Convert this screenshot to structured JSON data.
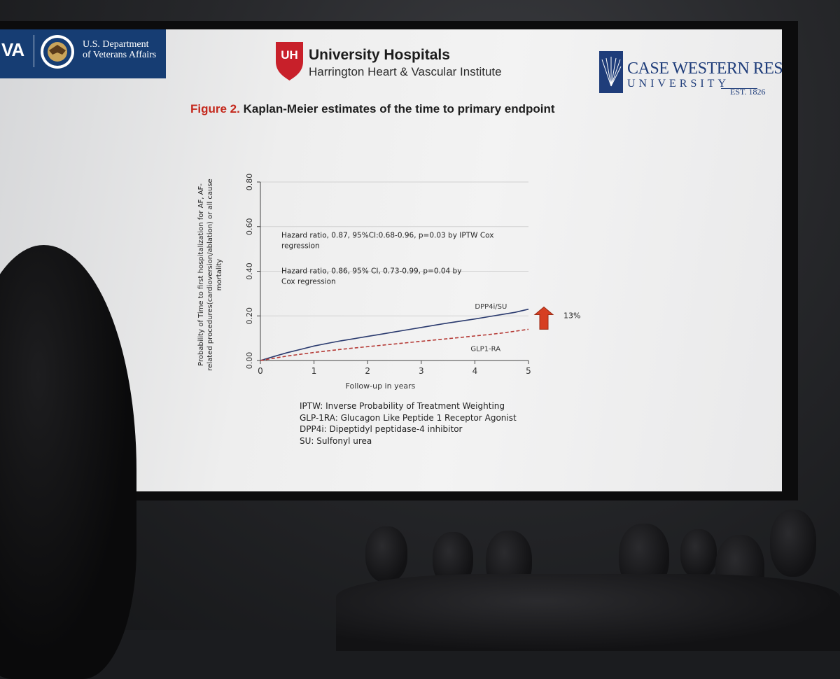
{
  "header": {
    "va_letters": "VA",
    "va_department": "U.S. Department\nof Veterans Affairs",
    "uh_mark": "UH",
    "uh_name": "University Hospitals",
    "uh_institute": "Harrington Heart & Vascular Institute",
    "cwru_name": "CASE WESTERN RESERVE",
    "cwru_university": "UNIVERSITY",
    "cwru_est": "EST. 1826"
  },
  "figure": {
    "label": "Figure 2.",
    "title": "Kaplan-Meier estimates of the time to primary endpoint"
  },
  "chart_data": {
    "type": "line",
    "xlabel": "Follow-up in years",
    "ylabel_lines": [
      "Probability of  Time to first hospitalization for AF, AF-",
      "related procedures(cardioversion/ablation) or all cause",
      "mortality"
    ],
    "xlim": [
      0,
      5
    ],
    "ylim": [
      0,
      0.8
    ],
    "x_ticks": [
      "0",
      "1",
      "2",
      "3",
      "4",
      "5"
    ],
    "y_ticks": [
      "0.00",
      "0.20",
      "0.40",
      "0.60",
      "0.80"
    ],
    "grid": "horizontal",
    "series": [
      {
        "name": "DPP4i/SU",
        "color": "#2a3a6e",
        "style": "solid",
        "x": [
          0,
          0.25,
          0.5,
          0.75,
          1,
          1.25,
          1.5,
          1.75,
          2,
          2.25,
          2.5,
          2.75,
          3,
          3.25,
          3.5,
          3.75,
          4,
          4.25,
          4.5,
          4.75,
          5
        ],
        "y": [
          0,
          0.018,
          0.035,
          0.05,
          0.065,
          0.077,
          0.088,
          0.098,
          0.108,
          0.118,
          0.128,
          0.138,
          0.148,
          0.158,
          0.168,
          0.177,
          0.186,
          0.196,
          0.206,
          0.216,
          0.23
        ]
      },
      {
        "name": "GLP1-RA",
        "color": "#b53a36",
        "style": "dashed",
        "x": [
          0,
          0.25,
          0.5,
          0.75,
          1,
          1.25,
          1.5,
          1.75,
          2,
          2.25,
          2.5,
          2.75,
          3,
          3.25,
          3.5,
          3.75,
          4,
          4.25,
          4.5,
          4.75,
          5
        ],
        "y": [
          0,
          0.01,
          0.02,
          0.028,
          0.036,
          0.043,
          0.05,
          0.056,
          0.062,
          0.068,
          0.074,
          0.08,
          0.086,
          0.092,
          0.098,
          0.104,
          0.11,
          0.116,
          0.123,
          0.131,
          0.14
        ]
      }
    ],
    "annotations": [
      "Hazard ratio, 0.87, 95%CI:0.68-0.96, p=0.03 by IPTW Cox",
      "regression",
      "Hazard ratio, 0.86, 95% CI, 0.73-0.99, p=0.04 by",
      "Cox regression"
    ],
    "increase_label": "13%",
    "arrow_color": "#d63f22"
  },
  "abbreviations": [
    "IPTW: Inverse Probability of Treatment  Weighting",
    "GLP-1RA: Glucagon Like Peptide 1 Receptor Agonist",
    "DPP4i: Dipeptidyl peptidase-4 inhibitor",
    "SU: Sulfonyl urea"
  ]
}
